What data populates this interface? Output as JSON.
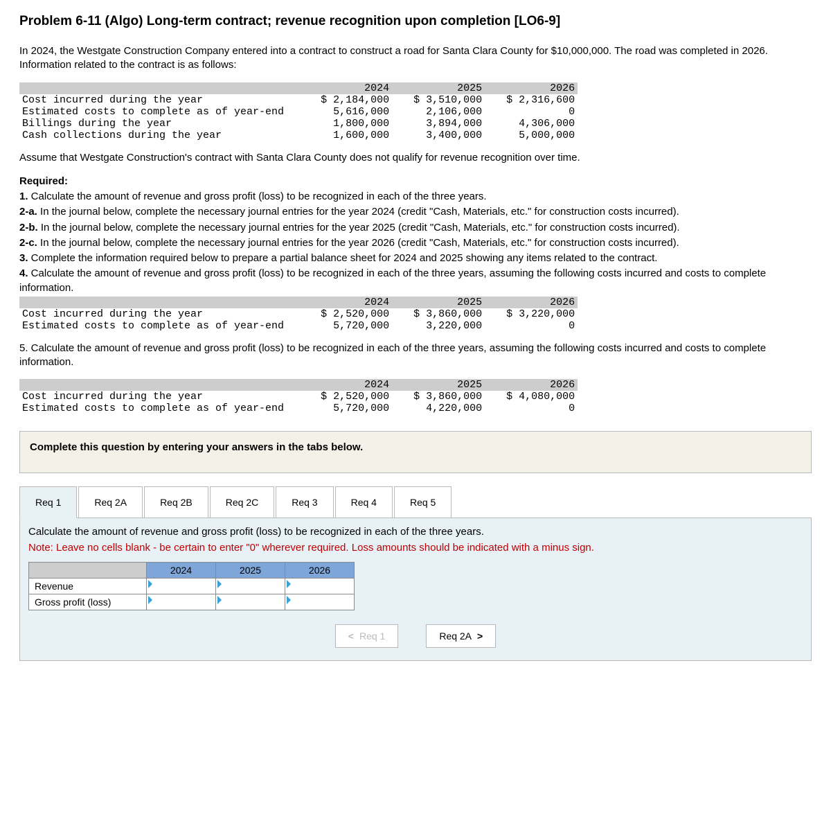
{
  "title": "Problem 6-11 (Algo) Long-term contract; revenue recognition upon completion [LO6-9]",
  "intro": "In 2024, the Westgate Construction Company entered into a contract to construct a road for Santa Clara County for $10,000,000. The road was completed in 2026. Information related to the contract is as follows:",
  "table1": {
    "years": [
      "2024",
      "2025",
      "2026"
    ],
    "rows": [
      {
        "label": "Cost incurred during the year",
        "v": [
          "$ 2,184,000",
          "$ 3,510,000",
          "$ 2,316,600"
        ]
      },
      {
        "label": "Estimated costs to complete as of year-end",
        "v": [
          "5,616,000",
          "2,106,000",
          "0"
        ]
      },
      {
        "label": "Billings during the year",
        "v": [
          "1,800,000",
          "3,894,000",
          "4,306,000"
        ]
      },
      {
        "label": "Cash collections during the year",
        "v": [
          "1,600,000",
          "3,400,000",
          "5,000,000"
        ]
      }
    ],
    "label_col_width_ch": 44,
    "num_col_width_ch": 14,
    "header_bg": "#cdcdcd"
  },
  "assume": "Assume that Westgate Construction's contract with Santa Clara County does not qualify for revenue recognition over time.",
  "required_heading": "Required:",
  "req_items": [
    "1. Calculate the amount of revenue and gross profit (loss) to be recognized in each of the three years.",
    "2-a. In the journal below, complete the necessary journal entries for the year 2024 (credit \"Cash, Materials, etc.\" for construction costs incurred).",
    "2-b. In the journal below, complete the necessary journal entries for the year 2025 (credit \"Cash, Materials, etc.\" for construction costs incurred).",
    "2-c. In the journal below, complete the necessary journal entries for the year 2026 (credit \"Cash, Materials, etc.\" for construction costs incurred).",
    "3. Complete the information required below to prepare a partial balance sheet for 2024 and 2025 showing any items related to the contract.",
    "4. Calculate the amount of revenue and gross profit (loss) to be recognized in each of the three years, assuming the following costs incurred and costs to complete information."
  ],
  "table2": {
    "years": [
      "2024",
      "2025",
      "2026"
    ],
    "rows": [
      {
        "label": "Cost incurred during the year",
        "v": [
          "$ 2,520,000",
          "$ 3,860,000",
          "$ 3,220,000"
        ]
      },
      {
        "label": "Estimated costs to complete as of year-end",
        "v": [
          "5,720,000",
          "3,220,000",
          "0"
        ]
      }
    ]
  },
  "req5_text": "5. Calculate the amount of revenue and gross profit (loss) to be recognized in each of the three years, assuming the following costs incurred and costs to complete information.",
  "table3": {
    "years": [
      "2024",
      "2025",
      "2026"
    ],
    "rows": [
      {
        "label": "Cost incurred during the year",
        "v": [
          "$ 2,520,000",
          "$ 3,860,000",
          "$ 4,080,000"
        ]
      },
      {
        "label": "Estimated costs to complete as of year-end",
        "v": [
          "5,720,000",
          "4,220,000",
          "0"
        ]
      }
    ]
  },
  "tabs_instruction": "Complete this question by entering your answers in the tabs below.",
  "tabs": [
    "Req 1",
    "Req 2A",
    "Req 2B",
    "Req 2C",
    "Req 3",
    "Req 4",
    "Req 5"
  ],
  "active_tab_index": 0,
  "panel": {
    "instruction": "Calculate the amount of revenue and gross profit (loss) to be recognized in each of the three years.",
    "note": "Note: Leave no cells blank - be certain to enter \"0\" wherever required. Loss amounts should be indicated with a minus sign.",
    "answer_years": [
      "2024",
      "2025",
      "2026"
    ],
    "answer_rows": [
      "Revenue",
      "Gross profit (loss)"
    ],
    "header_bg": "#7ea6d8"
  },
  "nav": {
    "prev_label": "Req 1",
    "next_label": "Req 2A"
  }
}
